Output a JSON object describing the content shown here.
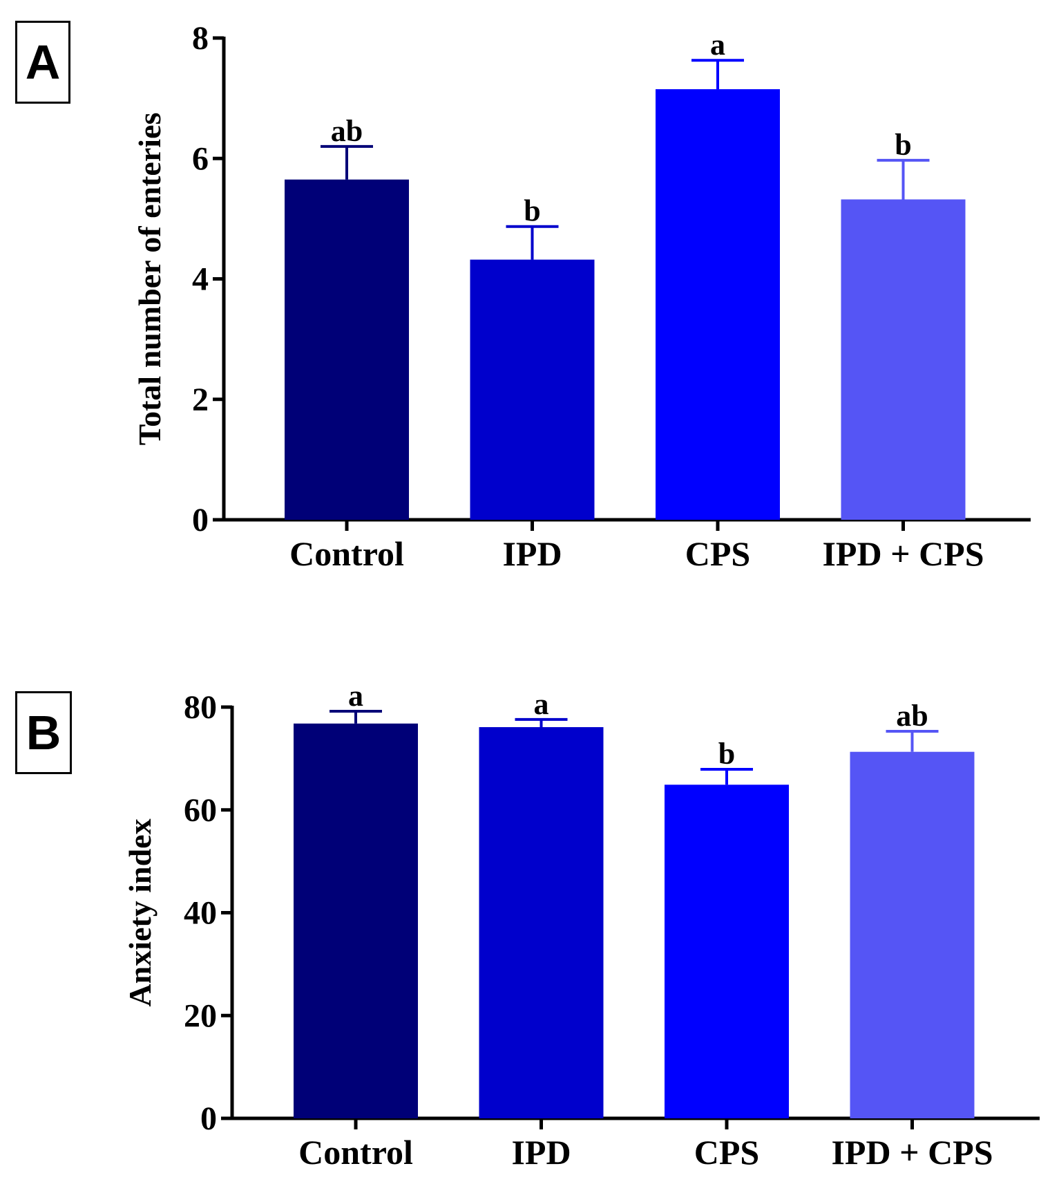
{
  "chart_data": [
    {
      "type": "bar",
      "panel_label": "A",
      "title": "",
      "xlabel": "",
      "ylabel": "Total number of enteries",
      "categories": [
        "Control",
        "IPD",
        "CPS",
        "IPD + CPS"
      ],
      "values": [
        5.65,
        4.32,
        7.15,
        5.32
      ],
      "errors": [
        0.55,
        0.55,
        0.48,
        0.65
      ],
      "significance": [
        "ab",
        "b",
        "a",
        "b"
      ],
      "ylim": [
        0,
        8
      ],
      "yticks": [
        "0",
        "2",
        "4",
        "6",
        "8"
      ],
      "colors": [
        "#000077",
        "#0000cc",
        "#0000ff",
        "#5555f5"
      ],
      "grid": false
    },
    {
      "type": "bar",
      "panel_label": "B",
      "title": "",
      "xlabel": "",
      "ylabel": "Anxiety index",
      "categories": [
        "Control",
        "IPD",
        "CPS",
        "IPD + CPS"
      ],
      "values": [
        76.8,
        76.1,
        64.9,
        71.3
      ],
      "errors": [
        2.4,
        1.5,
        3.0,
        4.0
      ],
      "significance": [
        "a",
        "a",
        "b",
        "ab"
      ],
      "ylim": [
        0,
        80
      ],
      "yticks": [
        "0",
        "20",
        "40",
        "60",
        "80"
      ],
      "colors": [
        "#000077",
        "#0000cc",
        "#0000ff",
        "#5555f5"
      ],
      "grid": false
    }
  ]
}
